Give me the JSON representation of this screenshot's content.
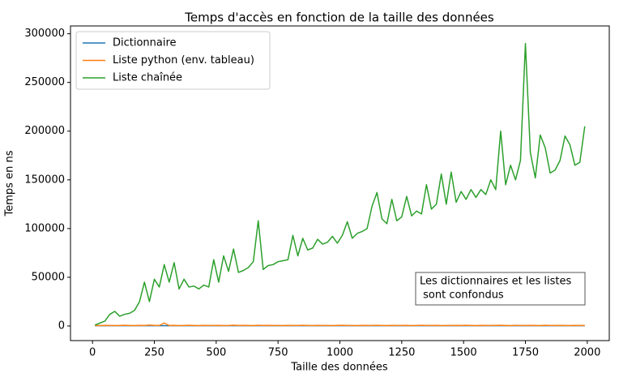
{
  "chart_data": {
    "type": "line",
    "title": "Temps d'accès en fonction de la taille des données",
    "xlabel": "Taille des données",
    "ylabel": "Temps en ns",
    "annotation": [
      "Les dictionnaires et les listes",
      " sont confondus"
    ],
    "legend": "upper left",
    "xlim": [
      -89,
      2089
    ],
    "ylim": [
      -15000,
      308000
    ],
    "xticks": [
      0,
      250,
      500,
      750,
      1000,
      1250,
      1500,
      1750,
      2000
    ],
    "yticks": [
      0,
      50000,
      100000,
      150000,
      200000,
      250000,
      300000
    ],
    "x": [
      10,
      30,
      50,
      70,
      90,
      110,
      130,
      150,
      170,
      190,
      210,
      230,
      250,
      270,
      290,
      310,
      330,
      350,
      370,
      390,
      410,
      430,
      450,
      470,
      490,
      510,
      530,
      550,
      570,
      590,
      610,
      630,
      650,
      670,
      690,
      710,
      730,
      750,
      770,
      790,
      810,
      830,
      850,
      870,
      890,
      910,
      930,
      950,
      970,
      990,
      1010,
      1030,
      1050,
      1070,
      1090,
      1110,
      1130,
      1150,
      1170,
      1190,
      1210,
      1230,
      1250,
      1270,
      1290,
      1310,
      1330,
      1350,
      1370,
      1390,
      1410,
      1430,
      1450,
      1470,
      1490,
      1510,
      1530,
      1550,
      1570,
      1590,
      1610,
      1630,
      1650,
      1670,
      1690,
      1710,
      1730,
      1750,
      1770,
      1790,
      1810,
      1830,
      1850,
      1870,
      1890,
      1910,
      1930,
      1950,
      1970,
      1990
    ],
    "series": [
      {
        "name": "Dictionnaire",
        "color": "#1f77b4",
        "values": [
          300,
          300,
          300,
          300,
          300,
          300,
          300,
          300,
          300,
          300,
          300,
          300,
          300,
          300,
          300,
          300,
          300,
          300,
          300,
          300,
          300,
          300,
          300,
          300,
          300,
          300,
          300,
          300,
          300,
          300,
          300,
          300,
          300,
          300,
          300,
          300,
          300,
          300,
          300,
          300,
          300,
          300,
          300,
          300,
          300,
          300,
          300,
          300,
          300,
          300,
          300,
          300,
          300,
          300,
          300,
          300,
          300,
          300,
          300,
          300,
          300,
          300,
          300,
          300,
          300,
          300,
          300,
          300,
          300,
          300,
          300,
          300,
          300,
          300,
          300,
          300,
          300,
          300,
          300,
          300,
          300,
          300,
          300,
          300,
          300,
          300,
          300,
          300,
          300,
          300,
          300,
          300,
          300,
          300,
          300,
          300,
          300,
          300,
          300,
          300
        ]
      },
      {
        "name": "Liste python (env. tableau)",
        "color": "#ff7f0e",
        "values": [
          500,
          400,
          600,
          500,
          400,
          500,
          700,
          500,
          400,
          600,
          500,
          900,
          600,
          500,
          3000,
          500,
          600,
          400,
          500,
          700,
          500,
          400,
          600,
          500,
          500,
          600,
          400,
          500,
          800,
          500,
          600,
          500,
          400,
          700,
          500,
          600,
          500,
          500,
          400,
          600,
          500,
          500,
          700,
          500,
          400,
          600,
          500,
          500,
          400,
          600,
          700,
          500,
          500,
          400,
          600,
          500,
          500,
          700,
          500,
          400,
          600,
          500,
          500,
          600,
          400,
          500,
          700,
          500,
          500,
          600,
          400,
          500,
          500,
          600,
          500,
          700,
          500,
          400,
          600,
          500,
          500,
          600,
          700,
          500,
          400,
          600,
          500,
          500,
          600,
          500,
          400,
          700,
          500,
          500,
          600,
          500,
          400,
          600,
          500,
          500
        ]
      },
      {
        "name": "Liste chaînée",
        "color": "#2ca02c",
        "values": [
          1000,
          3000,
          5000,
          12000,
          15000,
          10000,
          12000,
          13000,
          16000,
          25000,
          45000,
          25000,
          48000,
          40000,
          63000,
          45000,
          65000,
          38000,
          48000,
          40000,
          41000,
          38000,
          42000,
          40000,
          68000,
          45000,
          72000,
          56000,
          79000,
          55000,
          57000,
          60000,
          66000,
          108000,
          58000,
          62000,
          63000,
          66000,
          67000,
          68000,
          93000,
          72000,
          90000,
          78000,
          80000,
          89000,
          84000,
          86000,
          92000,
          85000,
          93000,
          107000,
          90000,
          95000,
          97000,
          100000,
          123000,
          137000,
          110000,
          105000,
          130000,
          108000,
          112000,
          133000,
          113000,
          118000,
          115000,
          145000,
          120000,
          125000,
          156000,
          125000,
          158000,
          127000,
          138000,
          130000,
          140000,
          132000,
          140000,
          135000,
          150000,
          140000,
          200000,
          145000,
          165000,
          150000,
          170000,
          290000,
          178000,
          152000,
          196000,
          183000,
          157000,
          160000,
          170000,
          195000,
          186000,
          165000,
          168000,
          205000
        ]
      }
    ]
  }
}
